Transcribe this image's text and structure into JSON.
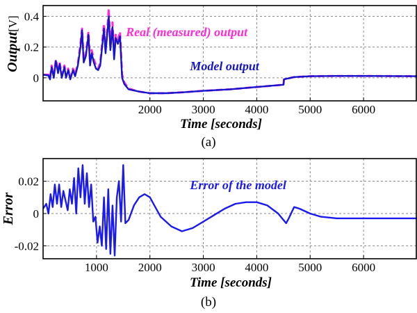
{
  "colors": {
    "real": "#ff2bd6",
    "model": "#1515cc",
    "error": "#1a1aee",
    "grid": "#8a8a8a"
  },
  "chart_data": [
    {
      "type": "line",
      "panel_label": "(a)",
      "xlabel": "Time [seconds]",
      "ylabel_main": "Output",
      "ylabel_unit": "[V]",
      "xlim": [
        0,
        7000
      ],
      "ylim": [
        -0.15,
        0.47
      ],
      "x_ticks": [
        2000,
        3000,
        4000,
        5000,
        6000
      ],
      "y_ticks": [
        0,
        0.2,
        0.4
      ],
      "x_tick_labels": [
        "2000",
        "3000",
        "4000",
        "5000",
        "6000"
      ],
      "y_tick_labels": [
        "0",
        "0.2",
        "0.4"
      ],
      "grid": true,
      "series": [
        {
          "name": "Real (measured) output",
          "color_key": "real",
          "style": "dashed",
          "x": [
            0,
            100,
            130,
            160,
            200,
            240,
            280,
            310,
            350,
            400,
            430,
            470,
            510,
            560,
            600,
            650,
            700,
            730,
            760,
            800,
            850,
            880,
            910,
            950,
            990,
            1030,
            1070,
            1100,
            1140,
            1170,
            1200,
            1230,
            1260,
            1300,
            1330,
            1360,
            1400,
            1440,
            1480,
            1520,
            1600,
            1800,
            2000,
            2300,
            2600,
            3000,
            3500,
            4000,
            4500,
            4510,
            4700,
            5000,
            5500,
            6000,
            7000
          ],
          "y": [
            0.02,
            0.02,
            0.0,
            0.08,
            0.02,
            0.12,
            0.04,
            0.1,
            0.02,
            0.08,
            0.01,
            0.06,
            0.0,
            0.06,
            0.02,
            0.09,
            0.22,
            0.32,
            0.12,
            0.15,
            0.3,
            0.1,
            0.18,
            0.12,
            0.08,
            0.06,
            0.1,
            0.2,
            0.35,
            0.18,
            0.3,
            0.45,
            0.2,
            0.36,
            0.15,
            0.28,
            0.25,
            0.3,
            0.02,
            -0.03,
            -0.07,
            -0.09,
            -0.1,
            -0.1,
            -0.095,
            -0.085,
            -0.075,
            -0.06,
            -0.045,
            -0.01,
            0.005,
            0.01,
            0.012,
            0.012,
            0.01
          ]
        },
        {
          "name": "Model output",
          "color_key": "model",
          "style": "solid",
          "x": [
            0,
            100,
            130,
            160,
            200,
            240,
            280,
            310,
            350,
            400,
            430,
            470,
            510,
            560,
            600,
            650,
            700,
            730,
            760,
            800,
            850,
            880,
            910,
            950,
            990,
            1030,
            1070,
            1100,
            1140,
            1170,
            1200,
            1230,
            1260,
            1300,
            1330,
            1360,
            1400,
            1440,
            1480,
            1520,
            1600,
            1800,
            2000,
            2300,
            2600,
            3000,
            3500,
            4000,
            4500,
            4510,
            4700,
            5000,
            5500,
            6000,
            7000
          ],
          "y": [
            0.02,
            0.015,
            -0.01,
            0.07,
            0.0,
            0.11,
            0.03,
            0.09,
            0.0,
            0.07,
            0.0,
            0.05,
            -0.01,
            0.05,
            0.01,
            0.08,
            0.2,
            0.31,
            0.1,
            0.14,
            0.28,
            0.08,
            0.16,
            0.1,
            0.06,
            0.05,
            0.08,
            0.18,
            0.32,
            0.16,
            0.28,
            0.4,
            0.18,
            0.33,
            0.12,
            0.26,
            0.22,
            0.27,
            0.0,
            -0.04,
            -0.075,
            -0.09,
            -0.1,
            -0.1,
            -0.095,
            -0.085,
            -0.075,
            -0.06,
            -0.045,
            -0.01,
            0.005,
            0.01,
            0.012,
            0.012,
            0.01
          ]
        }
      ],
      "annotations": [
        {
          "text": "Real (measured) output",
          "color_key": "real",
          "x": 1550,
          "y": 0.27
        },
        {
          "text": "Model output",
          "color_key": "model",
          "x": 2750,
          "y": 0.05
        }
      ]
    },
    {
      "type": "line",
      "panel_label": "(b)",
      "xlabel": "Time [seconds]",
      "ylabel_main": "Error",
      "xlim": [
        0,
        7000
      ],
      "ylim": [
        -0.028,
        0.034
      ],
      "x_ticks": [
        1000,
        2000,
        3000,
        4000,
        5000,
        6000
      ],
      "y_ticks": [
        -0.02,
        0,
        0.02
      ],
      "x_tick_labels": [
        "1000",
        "2000",
        "3000",
        "4000",
        "5000",
        "6000"
      ],
      "y_tick_labels": [
        "-0.02",
        "0",
        "0.02"
      ],
      "grid": true,
      "series": [
        {
          "name": "Error of the model",
          "color_key": "error",
          "style": "solid",
          "x": [
            0,
            60,
            100,
            140,
            180,
            220,
            260,
            300,
            340,
            380,
            420,
            460,
            500,
            540,
            580,
            620,
            660,
            700,
            740,
            780,
            820,
            860,
            900,
            940,
            980,
            1020,
            1060,
            1100,
            1140,
            1180,
            1220,
            1260,
            1300,
            1340,
            1380,
            1420,
            1460,
            1500,
            1540,
            1600,
            1700,
            1800,
            1900,
            2000,
            2100,
            2200,
            2400,
            2600,
            2800,
            3000,
            3200,
            3400,
            3600,
            3800,
            4000,
            4200,
            4400,
            4500,
            4550,
            4600,
            4700,
            4800,
            5000,
            5200,
            5500,
            6000,
            7000
          ],
          "y": [
            0.003,
            0.006,
            0.0,
            0.012,
            0.004,
            0.018,
            0.006,
            0.018,
            0.004,
            0.014,
            0.008,
            0.002,
            0.015,
            0.006,
            0.022,
            0.0,
            0.028,
            0.01,
            0.03,
            0.006,
            0.025,
            0.004,
            0.018,
            -0.005,
            -0.002,
            -0.018,
            -0.008,
            -0.02,
            0.01,
            -0.022,
            0.015,
            -0.025,
            0.005,
            -0.026,
            0.01,
            0.02,
            -0.005,
            0.03,
            -0.006,
            -0.004,
            0.005,
            0.01,
            0.012,
            0.01,
            0.004,
            -0.002,
            -0.008,
            -0.011,
            -0.009,
            -0.005,
            -0.001,
            0.003,
            0.006,
            0.007,
            0.007,
            0.005,
            0.0,
            -0.004,
            -0.006,
            -0.003,
            0.004,
            0.003,
            0.0,
            -0.002,
            -0.003,
            -0.003,
            -0.003
          ]
        }
      ],
      "annotations": [
        {
          "text": "Error of the model",
          "color_key": "error",
          "x": 2750,
          "y": 0.015
        }
      ]
    }
  ]
}
